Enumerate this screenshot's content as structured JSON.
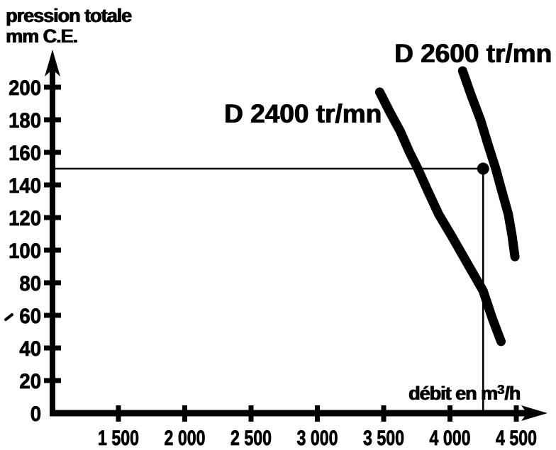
{
  "page": {
    "background": "#ffffff",
    "ink": "#000000"
  },
  "chart_data": {
    "type": "line",
    "title": "",
    "ylabel": "pression totale mm C.E.",
    "ylabel_lines": [
      "pression totale",
      "mm C.E."
    ],
    "xlabel": "débit en m³/h",
    "xlabel_parts": {
      "pre": "débit en m",
      "sup": "3",
      "post": "/h"
    },
    "xlim": [
      1000,
      4750
    ],
    "ylim": [
      0,
      220
    ],
    "grid": false,
    "legend_position": "inline-labels",
    "x_ticks": {
      "values": [
        1500,
        2000,
        2500,
        3000,
        3500,
        4000,
        4500
      ],
      "labels": [
        "1 500",
        "2 000",
        "2 500",
        "3 000",
        "3 500",
        "4 000",
        "4 500"
      ]
    },
    "y_ticks": {
      "values": [
        0,
        20,
        40,
        60,
        80,
        100,
        120,
        140,
        160,
        180,
        200
      ],
      "labels": [
        "0",
        "20",
        "40",
        "60",
        "80",
        "100",
        "120",
        "140",
        "160",
        "180",
        "200"
      ]
    },
    "series": [
      {
        "name": "D 2400 tr/mn",
        "color": "#000000",
        "points": [
          [
            3470,
            197
          ],
          [
            3545,
            185
          ],
          [
            3625,
            173
          ],
          [
            3695,
            160
          ],
          [
            3757,
            150
          ],
          [
            3835,
            136
          ],
          [
            3915,
            122
          ],
          [
            4010,
            109
          ],
          [
            4130,
            92
          ],
          [
            4250,
            75
          ],
          [
            4320,
            58
          ],
          [
            4385,
            44
          ]
        ]
      },
      {
        "name": "D 2600 tr/mn",
        "color": "#000000",
        "points": [
          [
            4095,
            210
          ],
          [
            4160,
            195
          ],
          [
            4230,
            180
          ],
          [
            4290,
            164
          ],
          [
            4345,
            150
          ],
          [
            4385,
            138
          ],
          [
            4440,
            122
          ],
          [
            4468,
            109
          ],
          [
            4490,
            96
          ]
        ]
      }
    ],
    "operating_point": {
      "x": 4250,
      "y": 150,
      "guides": true
    }
  }
}
